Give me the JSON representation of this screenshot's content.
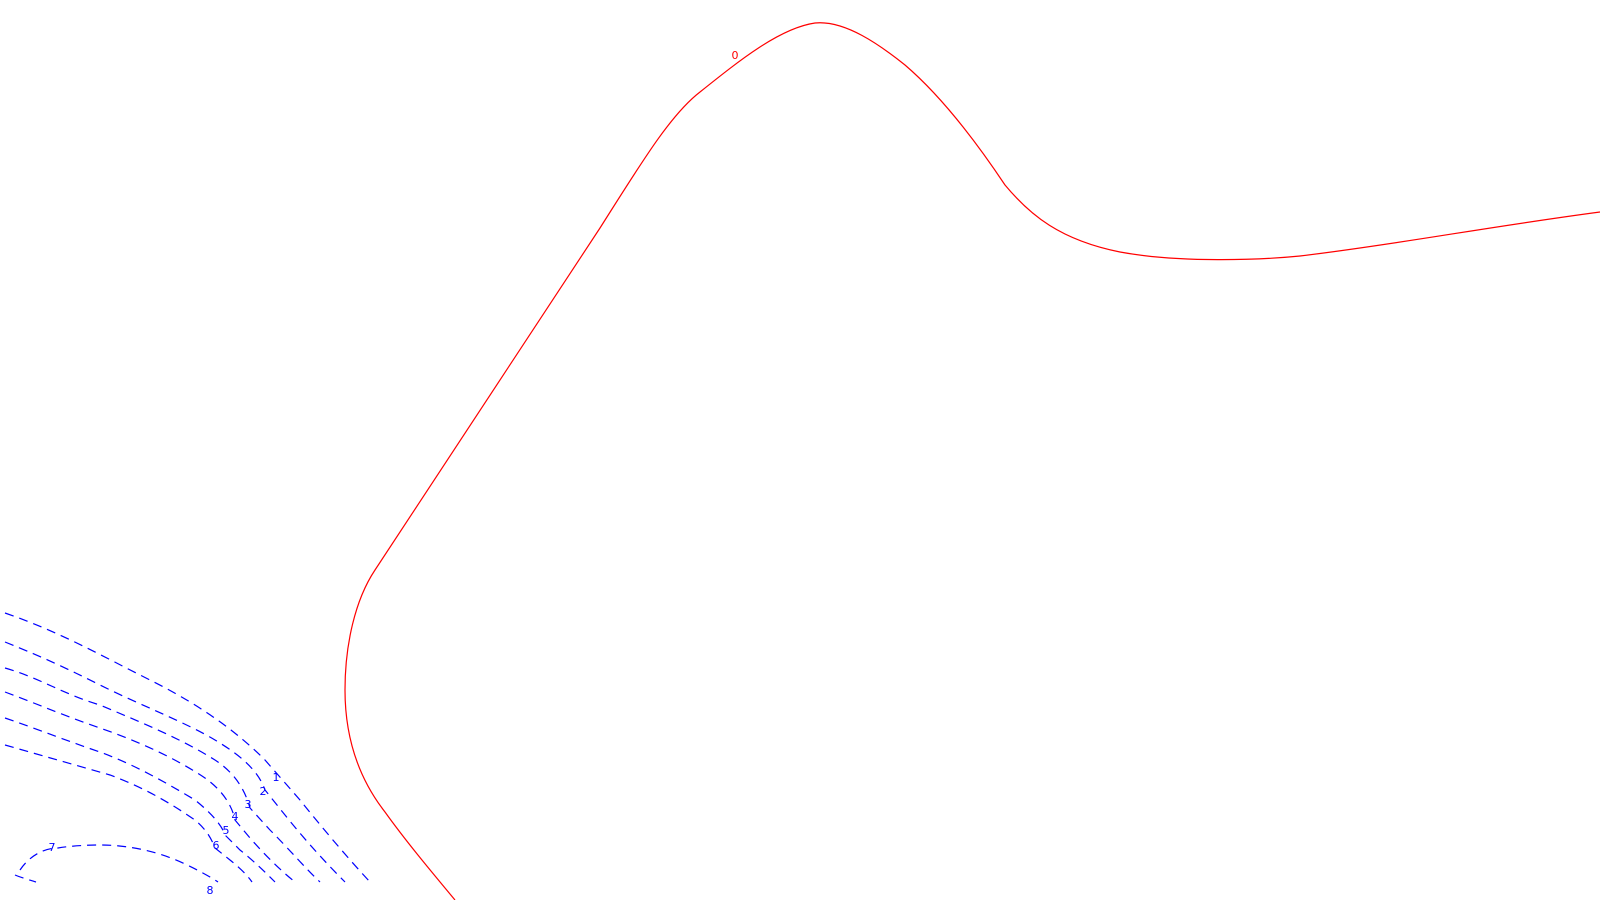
{
  "chart_data": {
    "type": "contour",
    "title": "",
    "xlabel": "",
    "ylabel": "",
    "grid": false,
    "legend": "none",
    "contours": [
      {
        "level": "0",
        "color": "#ff0000",
        "style": "solid"
      },
      {
        "level": "1",
        "color": "#0000ff",
        "style": "dashed"
      },
      {
        "level": "2",
        "color": "#0000ff",
        "style": "dashed"
      },
      {
        "level": "3",
        "color": "#0000ff",
        "style": "dashed"
      },
      {
        "level": "4",
        "color": "#0000ff",
        "style": "dashed"
      },
      {
        "level": "5",
        "color": "#0000ff",
        "style": "dashed"
      },
      {
        "level": "6",
        "color": "#0000ff",
        "style": "dashed"
      },
      {
        "level": "7",
        "color": "#0000ff",
        "style": "dashed"
      },
      {
        "level": "8",
        "color": "#0000ff",
        "style": "dashed"
      }
    ]
  }
}
